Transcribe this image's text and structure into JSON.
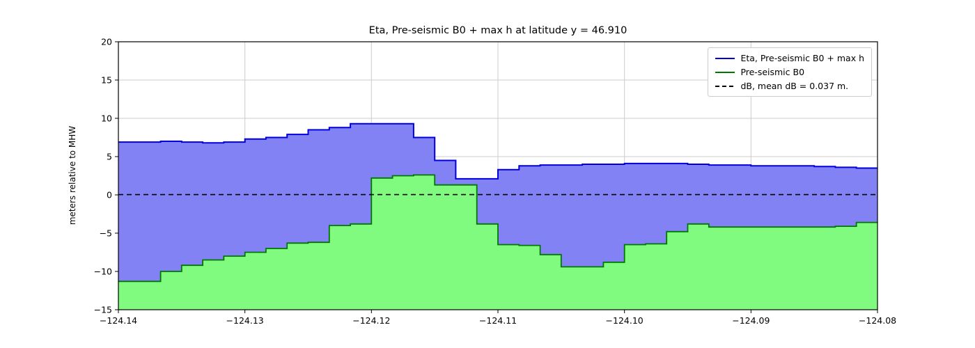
{
  "title": "Eta, Pre-seismic B0 + max h at latitude y = 46.910",
  "ylabel": "meters relative to MHW",
  "chart_data": {
    "type": "area",
    "subtype": "step-filled",
    "grid": true,
    "legend_position": "upper right",
    "xlim": [
      -124.14,
      -124.08
    ],
    "ylim": [
      -15,
      20
    ],
    "x_start": -124.14,
    "x_step": 0.00166667,
    "x_ticks": [
      -124.14,
      -124.13,
      -124.12,
      -124.11,
      -124.1,
      -124.09,
      -124.08
    ],
    "x_tick_labels": [
      "−124.14",
      "−124.13",
      "−124.12",
      "−124.11",
      "−124.10",
      "−124.09",
      "−124.08"
    ],
    "y_ticks": [
      -15,
      -10,
      -5,
      0,
      5,
      10,
      15,
      20
    ],
    "y_tick_labels": [
      "−15",
      "−10",
      "−5",
      "0",
      "5",
      "10",
      "15",
      "20"
    ],
    "series": [
      {
        "name": "Eta, Pre-seismic B0 + max h",
        "kind": "step",
        "color": "#0000dd",
        "fill": "#8282f5",
        "line_width": 2,
        "values": [
          6.9,
          6.9,
          7.0,
          6.9,
          6.8,
          6.9,
          7.3,
          7.5,
          7.9,
          8.5,
          8.8,
          9.3,
          9.3,
          9.3,
          7.5,
          4.5,
          2.1,
          2.1,
          3.3,
          3.8,
          3.9,
          3.9,
          4.0,
          4.0,
          4.1,
          4.1,
          4.1,
          4.0,
          3.9,
          3.9,
          3.8,
          3.8,
          3.8,
          3.7,
          3.6,
          3.5
        ]
      },
      {
        "name": "Pre-seismic B0",
        "kind": "step",
        "color": "#007700",
        "fill": "#80fb80",
        "line_width": 1.8,
        "values": [
          -11.3,
          -11.3,
          -10.0,
          -9.2,
          -8.5,
          -8.0,
          -7.5,
          -7.0,
          -6.3,
          -6.2,
          -4.0,
          -3.8,
          2.2,
          2.5,
          2.6,
          1.3,
          1.3,
          -3.8,
          -6.5,
          -6.6,
          -7.8,
          -9.4,
          -9.4,
          -8.8,
          -6.5,
          -6.4,
          -4.8,
          -3.8,
          -4.2,
          -4.2,
          -4.2,
          -4.2,
          -4.2,
          -4.2,
          -4.1,
          -3.6
        ]
      },
      {
        "name": "dB, mean dB = 0.037 m.",
        "kind": "hline",
        "color": "#000000",
        "style": "dashed",
        "line_width": 1.6,
        "value": 0.037
      }
    ]
  }
}
